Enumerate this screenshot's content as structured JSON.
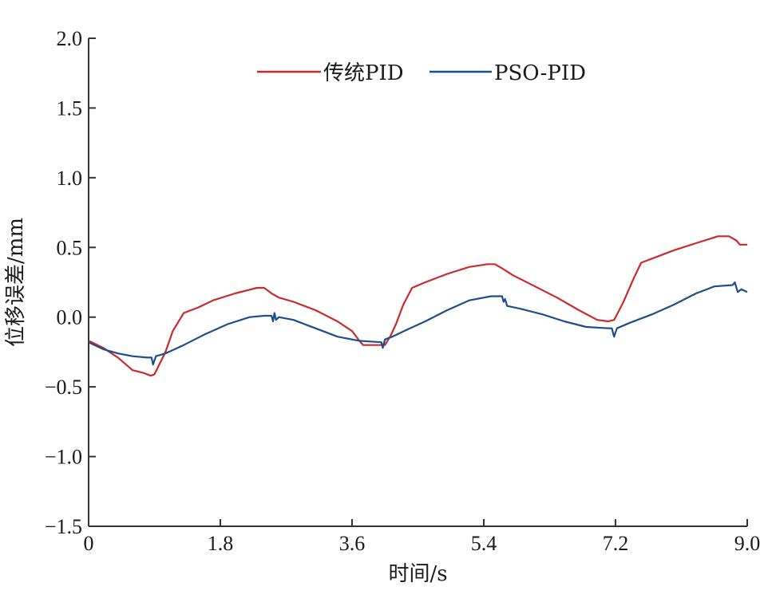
{
  "chart_data": {
    "type": "line",
    "xlabel": "时间/s",
    "ylabel": "位移误差/mm",
    "xlim": [
      0,
      9.0
    ],
    "ylim": [
      -1.5,
      2.0
    ],
    "x_ticks": [
      0,
      1.8,
      3.6,
      5.4,
      7.2,
      9.0
    ],
    "x_tick_labels": [
      "0",
      "1.8",
      "3.6",
      "5.4",
      "7.2",
      "9.0"
    ],
    "y_ticks": [
      -1.5,
      -1.0,
      -0.5,
      0.0,
      0.5,
      1.0,
      1.5,
      2.0
    ],
    "y_tick_labels": [
      "−1.5",
      "−1.0",
      "−0.5",
      "0.0",
      "0.5",
      "1.0",
      "1.5",
      "2.0"
    ],
    "grid": false,
    "legend_position": "top-center",
    "series": [
      {
        "name": "传统PID",
        "color": "#cc2a2a",
        "points": [
          [
            0.0,
            -0.17
          ],
          [
            0.2,
            -0.22
          ],
          [
            0.4,
            -0.29
          ],
          [
            0.6,
            -0.38
          ],
          [
            0.75,
            -0.4
          ],
          [
            0.85,
            -0.42
          ],
          [
            0.9,
            -0.41
          ],
          [
            1.05,
            -0.25
          ],
          [
            1.15,
            -0.1
          ],
          [
            1.3,
            0.03
          ],
          [
            1.5,
            0.07
          ],
          [
            1.7,
            0.12
          ],
          [
            2.0,
            0.17
          ],
          [
            2.3,
            0.21
          ],
          [
            2.4,
            0.21
          ],
          [
            2.5,
            0.17
          ],
          [
            2.6,
            0.14
          ],
          [
            2.8,
            0.11
          ],
          [
            3.1,
            0.05
          ],
          [
            3.4,
            -0.03
          ],
          [
            3.6,
            -0.1
          ],
          [
            3.7,
            -0.17
          ],
          [
            3.75,
            -0.2
          ],
          [
            4.05,
            -0.2
          ],
          [
            4.12,
            -0.14
          ],
          [
            4.2,
            -0.05
          ],
          [
            4.3,
            0.09
          ],
          [
            4.42,
            0.21
          ],
          [
            4.6,
            0.25
          ],
          [
            4.9,
            0.31
          ],
          [
            5.2,
            0.36
          ],
          [
            5.45,
            0.38
          ],
          [
            5.55,
            0.38
          ],
          [
            5.65,
            0.35
          ],
          [
            5.8,
            0.3
          ],
          [
            6.1,
            0.22
          ],
          [
            6.4,
            0.14
          ],
          [
            6.7,
            0.05
          ],
          [
            6.95,
            -0.02
          ],
          [
            7.1,
            -0.03
          ],
          [
            7.18,
            -0.02
          ],
          [
            7.3,
            0.1
          ],
          [
            7.45,
            0.28
          ],
          [
            7.55,
            0.39
          ],
          [
            7.7,
            0.42
          ],
          [
            8.0,
            0.48
          ],
          [
            8.3,
            0.53
          ],
          [
            8.6,
            0.58
          ],
          [
            8.75,
            0.58
          ],
          [
            8.85,
            0.55
          ],
          [
            8.9,
            0.52
          ],
          [
            9.0,
            0.52
          ]
        ]
      },
      {
        "name": "PSO-PID",
        "color": "#1d4e8c",
        "points": [
          [
            0.0,
            -0.18
          ],
          [
            0.2,
            -0.23
          ],
          [
            0.4,
            -0.26
          ],
          [
            0.6,
            -0.28
          ],
          [
            0.8,
            -0.29
          ],
          [
            0.86,
            -0.29
          ],
          [
            0.88,
            -0.34
          ],
          [
            0.92,
            -0.28
          ],
          [
            1.05,
            -0.26
          ],
          [
            1.3,
            -0.2
          ],
          [
            1.6,
            -0.12
          ],
          [
            1.9,
            -0.05
          ],
          [
            2.2,
            0.0
          ],
          [
            2.4,
            0.01
          ],
          [
            2.5,
            0.01
          ],
          [
            2.52,
            -0.03
          ],
          [
            2.54,
            0.03
          ],
          [
            2.56,
            -0.02
          ],
          [
            2.6,
            0.0
          ],
          [
            2.8,
            -0.02
          ],
          [
            3.1,
            -0.08
          ],
          [
            3.4,
            -0.14
          ],
          [
            3.7,
            -0.17
          ],
          [
            4.0,
            -0.18
          ],
          [
            4.02,
            -0.22
          ],
          [
            4.05,
            -0.16
          ],
          [
            4.15,
            -0.14
          ],
          [
            4.35,
            -0.09
          ],
          [
            4.6,
            -0.03
          ],
          [
            4.9,
            0.05
          ],
          [
            5.2,
            0.12
          ],
          [
            5.5,
            0.15
          ],
          [
            5.65,
            0.15
          ],
          [
            5.67,
            0.11
          ],
          [
            5.69,
            0.13
          ],
          [
            5.72,
            0.08
          ],
          [
            5.9,
            0.06
          ],
          [
            6.2,
            0.02
          ],
          [
            6.5,
            -0.03
          ],
          [
            6.8,
            -0.07
          ],
          [
            7.1,
            -0.08
          ],
          [
            7.15,
            -0.08
          ],
          [
            7.18,
            -0.14
          ],
          [
            7.22,
            -0.08
          ],
          [
            7.4,
            -0.04
          ],
          [
            7.7,
            0.02
          ],
          [
            8.0,
            0.09
          ],
          [
            8.3,
            0.17
          ],
          [
            8.55,
            0.22
          ],
          [
            8.8,
            0.23
          ],
          [
            8.83,
            0.25
          ],
          [
            8.87,
            0.18
          ],
          [
            8.92,
            0.2
          ],
          [
            9.0,
            0.18
          ]
        ]
      }
    ]
  }
}
